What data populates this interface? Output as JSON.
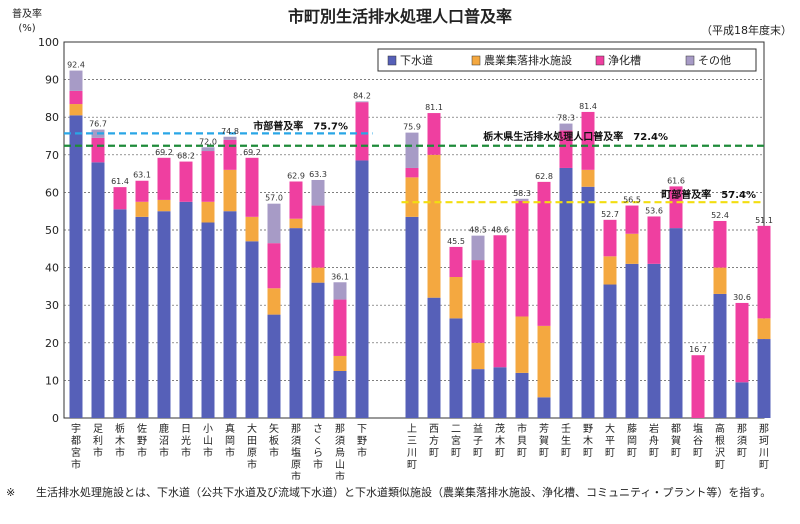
{
  "chart_data": {
    "type": "bar",
    "stacked": true,
    "title": "市町別生活排水処理人口普及率",
    "period": "（平成18年度末）",
    "ylabel": "普及率",
    "yunit": "(%)",
    "ylim": [
      0,
      100
    ],
    "yticks": [
      0,
      10,
      20,
      30,
      40,
      50,
      60,
      70,
      80,
      90,
      100
    ],
    "grid": true,
    "legend_position": "top-right",
    "legend": [
      "下水道",
      "農業集落排水施設",
      "浄化槽",
      "その他"
    ],
    "colors": [
      "#5660b8",
      "#f4a840",
      "#ef3fa0",
      "#a79bc6"
    ],
    "categories": [
      "宇都宮市",
      "足利市",
      "栃木市",
      "佐野市",
      "鹿沼市",
      "日光市",
      "小山市",
      "真岡市",
      "大田原市",
      "矢板市",
      "那須塩原市",
      "さくら市",
      "那須烏山市",
      "下野市",
      "上三川町",
      "西方町",
      "二宮町",
      "益子町",
      "茂木町",
      "市貝町",
      "芳賀町",
      "壬生町",
      "野木町",
      "大平町",
      "藤岡町",
      "岩舟町",
      "都賀町",
      "塩谷町",
      "高根沢町",
      "那須町",
      "那珂川町"
    ],
    "gap_after_index": 13,
    "series": [
      {
        "name": "下水道",
        "values": [
          80.5,
          68.0,
          55.5,
          53.5,
          55.0,
          57.5,
          52.0,
          55.0,
          47.0,
          27.5,
          50.5,
          36.0,
          12.5,
          68.5,
          53.5,
          32.0,
          26.5,
          13.0,
          13.5,
          12.0,
          5.5,
          66.5,
          61.5,
          35.5,
          41.0,
          41.0,
          50.5,
          0.0,
          33.0,
          9.5,
          21.0
        ]
      },
      {
        "name": "農業集落排水施設",
        "values": [
          3.0,
          0.0,
          0.0,
          4.0,
          3.0,
          0.0,
          5.5,
          11.0,
          6.5,
          7.0,
          2.5,
          4.0,
          4.0,
          0.0,
          10.5,
          38.0,
          11.0,
          7.0,
          0.0,
          15.0,
          19.0,
          0.0,
          4.5,
          7.5,
          8.0,
          0.0,
          0.0,
          0.0,
          7.0,
          0.0,
          5.5
        ]
      },
      {
        "name": "浄化槽",
        "values": [
          3.5,
          6.5,
          5.9,
          5.6,
          11.2,
          10.7,
          13.5,
          8.0,
          15.7,
          12.0,
          9.9,
          16.5,
          15.0,
          15.5,
          2.5,
          11.1,
          8.0,
          22.0,
          35.1,
          30.8,
          38.3,
          10.0,
          15.4,
          9.7,
          7.5,
          12.6,
          11.1,
          16.7,
          12.4,
          21.1,
          24.6
        ]
      },
      {
        "name": "その他",
        "values": [
          5.4,
          2.2,
          0.0,
          0.0,
          0.0,
          0.0,
          1.0,
          0.8,
          0.0,
          10.5,
          0.0,
          6.8,
          4.6,
          0.2,
          9.4,
          0.0,
          0.0,
          6.5,
          0.0,
          0.5,
          0.0,
          1.8,
          0.0,
          0.0,
          0.0,
          0.0,
          0.0,
          0.0,
          0.0,
          0.0,
          0.0
        ]
      }
    ],
    "totals": [
      92.4,
      76.7,
      61.4,
      63.1,
      69.2,
      68.2,
      72.0,
      74.8,
      69.2,
      57.0,
      62.9,
      63.3,
      36.1,
      84.2,
      75.9,
      81.1,
      45.5,
      48.5,
      48.6,
      58.3,
      62.8,
      78.3,
      81.4,
      52.7,
      56.5,
      53.6,
      61.6,
      16.7,
      52.4,
      30.6,
      51.1
    ],
    "total_labels": [
      "92.4",
      "76.7",
      "61.4",
      "63.1",
      "69.2",
      "68.2",
      "72.0",
      "74.8",
      "69.2",
      "57.0",
      "62.9",
      "63.3",
      "36.1",
      "84.2",
      "75.9",
      "81.1",
      "45.5",
      "48.5",
      "48.6",
      "58.3",
      "62.8",
      "78.3",
      "81.4",
      "52.7",
      "56.5",
      "53.6",
      "61.6",
      "16.7",
      "52.4",
      "30.6",
      "51.1"
    ],
    "reference_lines": [
      {
        "label": "市部普及率　75.7%",
        "value": 75.7,
        "color": "#29a6e6",
        "span": "cities"
      },
      {
        "label": "栃木県生活排水処理人口普及率　72.4%",
        "value": 72.4,
        "color": "#1e8b3a",
        "span": "all"
      },
      {
        "label": "町部普及率　57.4%",
        "value": 57.4,
        "color": "#f2de10",
        "span": "towns"
      }
    ]
  },
  "footnote": {
    "mark": "※",
    "text": "生活排水処理施設とは、下水道（公共下水道及び流域下水道）と下水道類似施設（農業集落排水施設、浄化槽、コミュニティ・プラント等）を指す。"
  }
}
